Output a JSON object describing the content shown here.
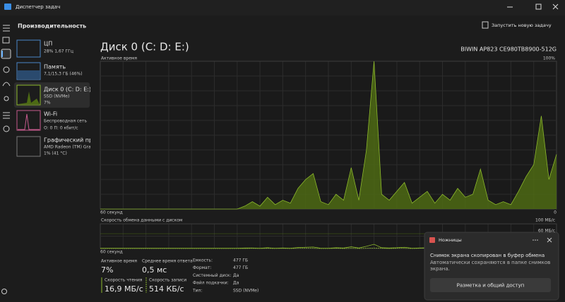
{
  "window": {
    "title": "Диспетчер задач"
  },
  "header": {
    "title": "Производительность",
    "action": "Запустить новую задачу"
  },
  "sidebar": {
    "items": [
      {
        "name": "ЦП",
        "details": [
          "28% 1,67 ГГц"
        ]
      },
      {
        "name": "Память",
        "details": [
          "7,1/15,3 ГБ (46%)"
        ]
      },
      {
        "name": "Диск 0 (C: D: E:)",
        "details": [
          "SSD (NVMe)",
          "7%"
        ]
      },
      {
        "name": "Wi-Fi",
        "details": [
          "Беспроводная сеть",
          "О: 0 П: 0 кбит/с"
        ]
      },
      {
        "name": "Графический про",
        "details": [
          "AMD Radeon (TM) Grap",
          "1% (41 °C)"
        ]
      }
    ]
  },
  "disk": {
    "title": "Диск 0 (C: D: E:)",
    "model": "BIWIN AP823 CE980TB8900-512G",
    "active_chart": {
      "type": "area",
      "label": "Активное время",
      "color": "#8cb82c",
      "ylim": [
        0,
        100
      ],
      "yticks": [
        {
          "value": 100,
          "label": "100%"
        }
      ],
      "xlim": [
        60,
        0
      ],
      "xticks": [
        {
          "value": 60,
          "label": "60 секунд"
        },
        0
      ],
      "values": [
        0,
        0,
        0,
        0,
        0,
        0,
        0,
        0,
        0,
        0,
        0,
        0,
        0,
        0,
        0,
        0,
        0,
        0,
        0,
        2,
        5,
        2,
        8,
        3,
        6,
        4,
        14,
        20,
        24,
        5,
        3,
        10,
        6,
        28,
        6,
        40,
        100,
        10,
        6,
        12,
        18,
        4,
        8,
        12,
        4,
        10,
        6,
        14,
        8,
        10,
        27,
        6,
        3,
        5,
        3,
        12,
        22,
        30,
        63,
        20,
        37
      ]
    },
    "transfer_chart": {
      "type": "line",
      "label": "Скорость обмена данными с диском",
      "ylim": [
        0,
        100
      ],
      "yticks": [
        {
          "value": 100,
          "label": "100 МБ/с"
        },
        {
          "value": 60,
          "label": "60 МБ/с"
        }
      ],
      "xlim": [
        60,
        0
      ],
      "xticks": [
        {
          "value": 60,
          "label": "60 секунд"
        },
        0
      ],
      "series": [
        {
          "color": "#8cb82c",
          "dashed": false,
          "values": [
            1,
            1,
            1,
            1,
            1,
            1,
            1,
            1,
            1,
            1,
            1,
            1,
            1,
            1,
            1,
            1,
            1,
            1,
            1,
            2,
            2,
            1,
            3,
            1,
            2,
            1,
            4,
            5,
            6,
            1,
            1,
            3,
            2,
            7,
            2,
            9,
            17,
            3,
            2,
            3,
            5,
            1,
            2,
            3,
            1,
            3,
            2,
            4,
            2,
            3,
            6,
            2,
            1,
            2,
            1,
            3,
            5,
            7,
            12,
            4,
            8
          ]
        },
        {
          "color": "#8cb82c",
          "dashed": true,
          "values": [
            0,
            0,
            0,
            0,
            0,
            0,
            0,
            0,
            0,
            0,
            0,
            0,
            0,
            0,
            0,
            0,
            0,
            0,
            0,
            0,
            1,
            0,
            1,
            0,
            1,
            0,
            1,
            1,
            1,
            0,
            0,
            1,
            0,
            1,
            0,
            1,
            2,
            1,
            0,
            1,
            1,
            0,
            1,
            1,
            0,
            1,
            0,
            1,
            1,
            1,
            1,
            0,
            0,
            1,
            0,
            1,
            1,
            1,
            1,
            1,
            1
          ]
        }
      ]
    }
  },
  "stats": [
    {
      "label": "Активное время",
      "value": "7%"
    },
    {
      "label": "Среднее время ответа",
      "value": "0,5 мс"
    },
    {
      "label": "Скорость чтения",
      "value": "16,9 МБ/с"
    },
    {
      "label": "Скорость записи",
      "value": "514 КБ/с"
    }
  ],
  "properties": [
    {
      "label": "Емкость:",
      "value": "477 ГБ"
    },
    {
      "label": "Формат:",
      "value": "477 ГБ"
    },
    {
      "label": "Системный диск:",
      "value": "Да"
    },
    {
      "label": "Файл подкачки:",
      "value": "Да"
    },
    {
      "label": "Тип:",
      "value": "SSD (NVMe)"
    }
  ],
  "notification": {
    "app": "Ножницы",
    "lines": [
      "Снимок экрана скопирован в буфер обмена",
      "Автоматически сохраняются в папке снимков",
      "экрана."
    ],
    "button": "Разметка и общий доступ"
  }
}
